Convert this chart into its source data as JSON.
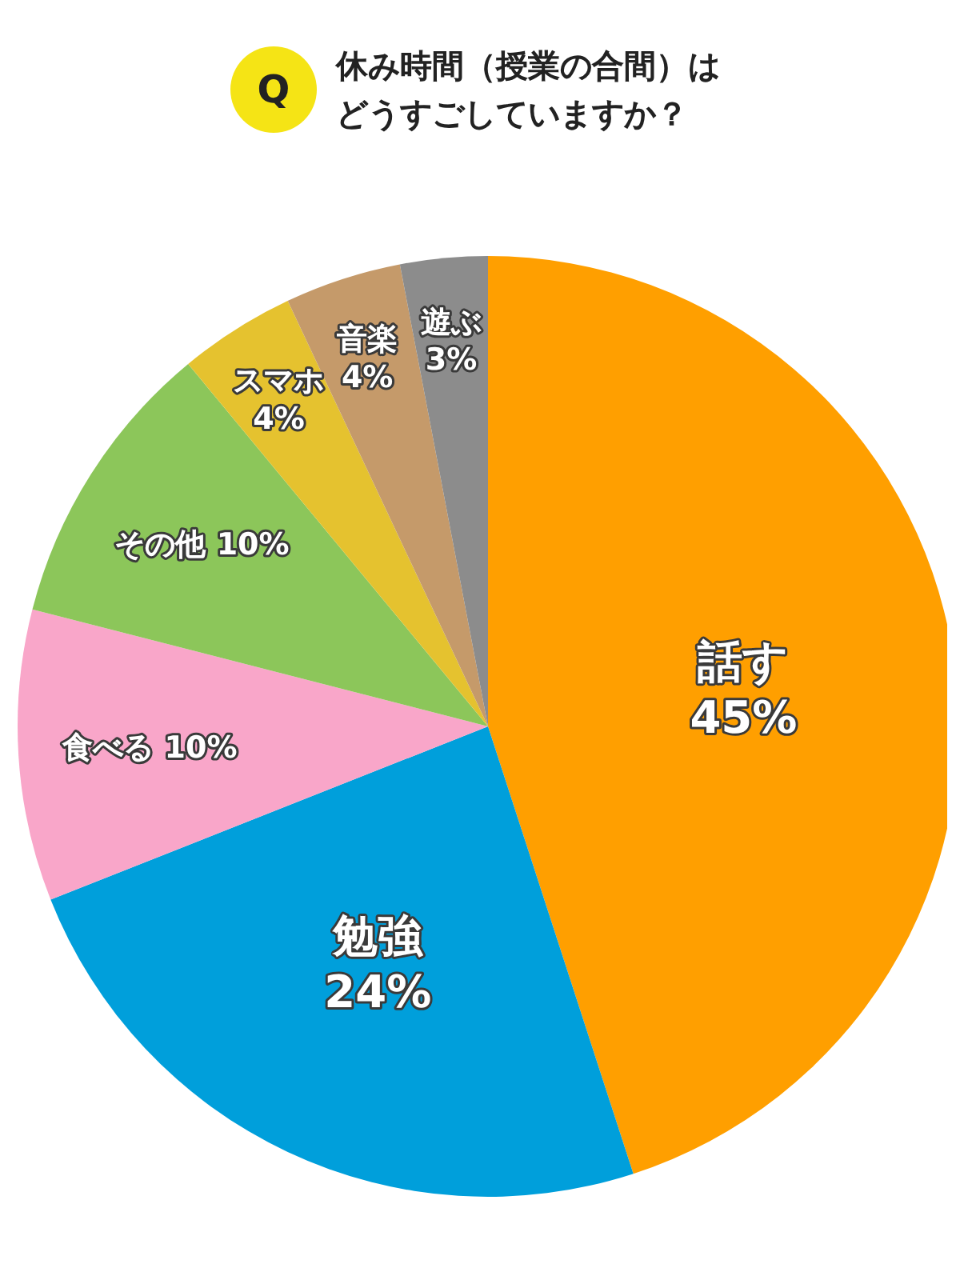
{
  "chart_data": {
    "type": "pie",
    "title": "休み時間（授業の合間）はどうすごしていますか？",
    "annotations": [
      "Q"
    ],
    "categories": [
      "話す",
      "勉強",
      "食べる",
      "その他",
      "スマホ",
      "音楽",
      "遊ぶ"
    ],
    "values": [
      45,
      24,
      10,
      10,
      4,
      4,
      3
    ],
    "value_labels": [
      "45%",
      "24%",
      "10%",
      "10%",
      "4%",
      "4%",
      "3%"
    ],
    "colors": [
      "#ff9f00",
      "#009fdb",
      "#f9a6c9",
      "#8cc65a",
      "#e5c22f",
      "#c59a6a",
      "#8c8c8c"
    ],
    "legend": false
  }
}
